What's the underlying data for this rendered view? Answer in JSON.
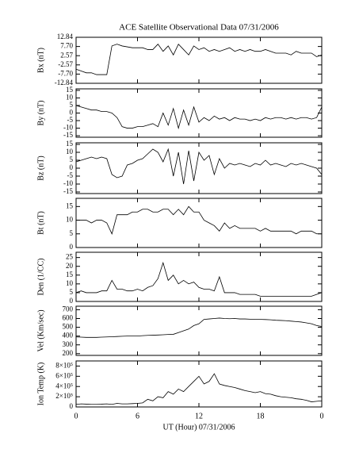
{
  "chart_data": [
    {
      "type": "line",
      "title": "ACE Satellite Observational Data  07/31/2006",
      "ylabel": "Bx (nT)",
      "color": "#000000",
      "xlim": [
        0,
        24
      ],
      "xticks": [
        0,
        6,
        12,
        18,
        {
          "value": 24,
          "label": "0"
        }
      ],
      "ylim": [
        -12.84,
        12.84
      ],
      "yticks": [
        12.84,
        {
          "value": 7.7,
          "label": "7.70"
        },
        2.57,
        -2.57,
        {
          "value": -7.7,
          "label": "-7.70"
        },
        -12.84
      ],
      "x": [
        0,
        0.5,
        1,
        1.5,
        2,
        2.5,
        3,
        3.5,
        4,
        4.5,
        5,
        5.5,
        6,
        6.5,
        7,
        7.5,
        8,
        8.5,
        9,
        9.5,
        10,
        10.5,
        11,
        11.5,
        12,
        12.5,
        13,
        13.5,
        14,
        14.5,
        15,
        15.5,
        16,
        16.5,
        17,
        17.5,
        18,
        18.5,
        19,
        19.5,
        20,
        20.5,
        21,
        21.5,
        22,
        22.5,
        23,
        23.5,
        24
      ],
      "values": [
        -5,
        -6,
        -7,
        -7,
        -8,
        -8,
        -8,
        8,
        9,
        8,
        7.5,
        7,
        7,
        7,
        6,
        6,
        9,
        5,
        8,
        3,
        9,
        6,
        3,
        8,
        6,
        7,
        5,
        6,
        5,
        6,
        7,
        5,
        6,
        5,
        6,
        5,
        5,
        6,
        5,
        4,
        4,
        4,
        3,
        5,
        4,
        4,
        4,
        2,
        3
      ]
    },
    {
      "type": "line",
      "ylabel": "By (nT)",
      "color": "#000000",
      "xlim": [
        0,
        24
      ],
      "xticks": [
        0,
        6,
        12,
        18,
        {
          "value": 24,
          "label": "0"
        }
      ],
      "ylim": [
        -16,
        16
      ],
      "yticks": [
        15,
        10,
        5,
        0,
        -5,
        -10,
        -15
      ],
      "x": [
        0,
        0.5,
        1,
        1.5,
        2,
        2.5,
        3,
        3.5,
        4,
        4.5,
        5,
        5.5,
        6,
        6.5,
        7,
        7.5,
        8,
        8.5,
        9,
        9.5,
        10,
        10.5,
        11,
        11.5,
        12,
        12.5,
        13,
        13.5,
        14,
        14.5,
        15,
        15.5,
        16,
        16.5,
        17,
        17.5,
        18,
        18.5,
        19,
        19.5,
        20,
        20.5,
        21,
        21.5,
        22,
        22.5,
        23,
        23.5,
        24
      ],
      "values": [
        5,
        4,
        3,
        2,
        2,
        1,
        1,
        0,
        -3,
        -9,
        -10,
        -10,
        -9,
        -9,
        -8,
        -7,
        -9,
        0,
        -8,
        3,
        -10,
        2,
        -8,
        4,
        -6,
        -3,
        -5,
        -2,
        -4,
        -3,
        -5,
        -3,
        -4,
        -4,
        -5,
        -4,
        -5,
        -3,
        -4,
        -3,
        -3,
        -4,
        -3,
        -4,
        -3,
        -3,
        -4,
        -3,
        4
      ]
    },
    {
      "type": "line",
      "ylabel": "Bz (nT)",
      "color": "#000000",
      "xlim": [
        0,
        24
      ],
      "xticks": [
        0,
        6,
        12,
        18,
        {
          "value": 24,
          "label": "0"
        }
      ],
      "ylim": [
        -16,
        16
      ],
      "yticks": [
        15,
        10,
        5,
        0,
        -5,
        -10,
        -15
      ],
      "x": [
        0,
        0.5,
        1,
        1.5,
        2,
        2.5,
        3,
        3.5,
        4,
        4.5,
        5,
        5.5,
        6,
        6.5,
        7,
        7.5,
        8,
        8.5,
        9,
        9.5,
        10,
        10.5,
        11,
        11.5,
        12,
        12.5,
        13,
        13.5,
        14,
        14.5,
        15,
        15.5,
        16,
        16.5,
        17,
        17.5,
        18,
        18.5,
        19,
        19.5,
        20,
        20.5,
        21,
        21.5,
        22,
        22.5,
        23,
        23.5,
        24
      ],
      "values": [
        4,
        5,
        6,
        7,
        6,
        7,
        6,
        -4,
        -6,
        -5,
        2,
        3,
        5,
        6,
        9,
        12,
        10,
        4,
        12,
        -5,
        10,
        -10,
        11,
        -8,
        10,
        5,
        8,
        -4,
        6,
        0,
        3,
        2,
        3,
        2,
        1,
        3,
        2,
        5,
        2,
        3,
        2,
        1,
        3,
        2,
        3,
        2,
        1,
        0,
        -4
      ]
    },
    {
      "type": "line",
      "ylabel": "Bt (nT)",
      "color": "#000000",
      "xlim": [
        0,
        24
      ],
      "xticks": [
        0,
        6,
        12,
        18,
        {
          "value": 24,
          "label": "0"
        }
      ],
      "ylim": [
        0,
        18
      ],
      "yticks": [
        15,
        10,
        5,
        0
      ],
      "x": [
        0,
        0.5,
        1,
        1.5,
        2,
        2.5,
        3,
        3.5,
        4,
        4.5,
        5,
        5.5,
        6,
        6.5,
        7,
        7.5,
        8,
        8.5,
        9,
        9.5,
        10,
        10.5,
        11,
        11.5,
        12,
        12.5,
        13,
        13.5,
        14,
        14.5,
        15,
        15.5,
        16,
        16.5,
        17,
        17.5,
        18,
        18.5,
        19,
        19.5,
        20,
        20.5,
        21,
        21.5,
        22,
        22.5,
        23,
        23.5,
        24
      ],
      "values": [
        10,
        10,
        10,
        9,
        10,
        10,
        9,
        5,
        12,
        12,
        12,
        13,
        13,
        14,
        14,
        13,
        13,
        14,
        14,
        12,
        14,
        12,
        15,
        13,
        13,
        10,
        9,
        8,
        6,
        9,
        7,
        8,
        7,
        7,
        7,
        7,
        6,
        7,
        6,
        6,
        6,
        6,
        6,
        5,
        6,
        6,
        6,
        5,
        5
      ]
    },
    {
      "type": "line",
      "ylabel": "Den (1/CC)",
      "color": "#000000",
      "xlim": [
        0,
        24
      ],
      "xticks": [
        0,
        6,
        12,
        18,
        {
          "value": 24,
          "label": "0"
        }
      ],
      "ylim": [
        0,
        28
      ],
      "yticks": [
        25,
        20,
        15,
        10,
        5,
        0
      ],
      "x": [
        0,
        0.5,
        1,
        1.5,
        2,
        2.5,
        3,
        3.5,
        4,
        4.5,
        5,
        5.5,
        6,
        6.5,
        7,
        7.5,
        8,
        8.5,
        9,
        9.5,
        10,
        10.5,
        11,
        11.5,
        12,
        12.5,
        13,
        13.5,
        14,
        14.5,
        15,
        15.5,
        16,
        16.5,
        17,
        17.5,
        18,
        18.5,
        19,
        19.5,
        20,
        20.5,
        21,
        21.5,
        22,
        22.5,
        23,
        23.5,
        24
      ],
      "values": [
        5,
        6,
        5,
        5,
        5,
        6,
        6,
        12,
        7,
        7,
        6,
        6,
        7,
        6,
        8,
        9,
        13,
        22,
        12,
        15,
        10,
        12,
        10,
        11,
        8,
        7,
        7,
        6,
        14,
        5,
        5,
        5,
        4,
        4,
        4,
        4,
        3,
        3,
        3,
        3,
        3,
        3,
        3,
        3,
        3,
        3,
        3,
        4,
        5
      ]
    },
    {
      "type": "line",
      "ylabel": "Vel (Km/sec)",
      "color": "#000000",
      "xlim": [
        0,
        24
      ],
      "xticks": [
        0,
        6,
        12,
        18,
        {
          "value": 24,
          "label": "0"
        }
      ],
      "ylim": [
        180,
        740
      ],
      "yticks": [
        700,
        600,
        500,
        400,
        300,
        200
      ],
      "x": [
        0,
        0.5,
        1,
        1.5,
        2,
        2.5,
        3,
        3.5,
        4,
        4.5,
        5,
        5.5,
        6,
        6.5,
        7,
        7.5,
        8,
        8.5,
        9,
        9.5,
        10,
        10.5,
        11,
        11.5,
        12,
        12.5,
        13,
        13.5,
        14,
        14.5,
        15,
        15.5,
        16,
        16.5,
        17,
        17.5,
        18,
        18.5,
        19,
        19.5,
        20,
        20.5,
        21,
        21.5,
        22,
        22.5,
        23,
        23.5,
        24
      ],
      "values": [
        390,
        388,
        385,
        385,
        385,
        388,
        390,
        392,
        395,
        398,
        400,
        400,
        400,
        405,
        408,
        410,
        412,
        415,
        418,
        420,
        440,
        460,
        480,
        520,
        540,
        590,
        595,
        600,
        605,
        600,
        598,
        600,
        595,
        595,
        592,
        590,
        590,
        588,
        585,
        580,
        578,
        575,
        570,
        565,
        560,
        550,
        540,
        520,
        510
      ]
    },
    {
      "type": "line",
      "ylabel": "Ion Temp (K)",
      "color": "#000000",
      "xlabel": "UT (Hour)   07/31/2006",
      "xlim": [
        0,
        24
      ],
      "xticks": [
        0,
        6,
        12,
        18,
        {
          "value": 24,
          "label": "0"
        }
      ],
      "ylim": [
        0,
        900000
      ],
      "yticks": [
        {
          "value": 800000,
          "label": "8×10⁵"
        },
        {
          "value": 600000,
          "label": "6×10⁵"
        },
        {
          "value": 400000,
          "label": "4×10⁵"
        },
        {
          "value": 200000,
          "label": "2×10⁵"
        },
        0
      ],
      "x": [
        0,
        0.5,
        1,
        1.5,
        2,
        2.5,
        3,
        3.5,
        4,
        4.5,
        5,
        5.5,
        6,
        6.5,
        7,
        7.5,
        8,
        8.5,
        9,
        9.5,
        10,
        10.5,
        11,
        11.5,
        12,
        12.5,
        13,
        13.5,
        14,
        14.5,
        15,
        15.5,
        16,
        16.5,
        17,
        17.5,
        18,
        18.5,
        19,
        19.5,
        20,
        20.5,
        21,
        21.5,
        22,
        22.5,
        23,
        23.5,
        24
      ],
      "values": [
        50000,
        60000,
        55000,
        50000,
        50000,
        55000,
        60000,
        50000,
        70000,
        60000,
        60000,
        65000,
        70000,
        80000,
        150000,
        120000,
        200000,
        180000,
        300000,
        250000,
        350000,
        300000,
        400000,
        500000,
        600000,
        450000,
        500000,
        650000,
        450000,
        420000,
        400000,
        380000,
        350000,
        320000,
        300000,
        280000,
        300000,
        260000,
        250000,
        220000,
        200000,
        190000,
        180000,
        160000,
        150000,
        130000,
        100000,
        110000,
        120000
      ]
    }
  ]
}
